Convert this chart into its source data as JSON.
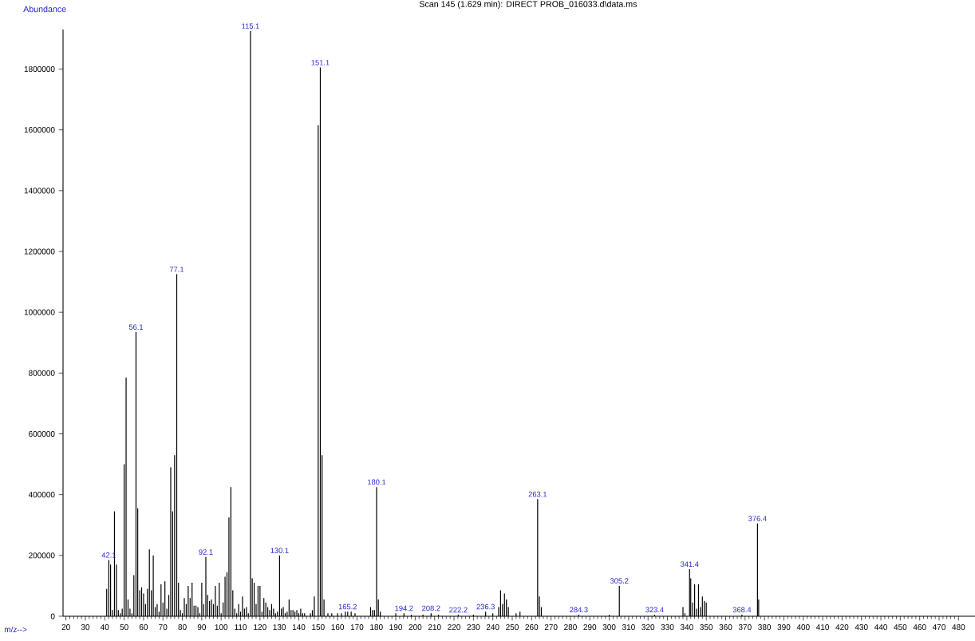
{
  "chart_data": {
    "type": "bar",
    "title": "Scan 145 (1.629 min): DIRECT PROB_016033.d\\data.ms",
    "xlabel": "m/z-->",
    "ylabel": "Abundance",
    "xlim": [
      18.5,
      488.5
    ],
    "ylim": [
      0,
      1930000
    ],
    "xticks": [
      20,
      30,
      40,
      50,
      60,
      70,
      80,
      90,
      100,
      110,
      120,
      130,
      140,
      150,
      160,
      170,
      180,
      190,
      200,
      210,
      220,
      230,
      240,
      250,
      260,
      270,
      280,
      290,
      300,
      310,
      320,
      330,
      340,
      350,
      360,
      370,
      380,
      390,
      400,
      410,
      420,
      430,
      440,
      450,
      460,
      470,
      480
    ],
    "yticks": [
      0,
      200000,
      400000,
      600000,
      800000,
      1000000,
      1200000,
      1400000,
      1600000,
      1800000
    ],
    "series": [
      {
        "color": "#000000",
        "x": [
          41,
          42.1,
          43,
          44,
          45,
          46,
          47,
          48,
          49,
          50,
          51,
          52,
          53,
          54,
          55,
          56.1,
          57,
          58,
          59,
          60,
          61,
          62,
          63,
          64,
          65,
          66,
          67,
          68,
          69,
          70,
          71,
          72,
          73,
          74,
          75,
          76,
          77.1,
          78,
          79,
          80,
          81,
          82,
          83,
          84,
          85,
          86,
          87,
          88,
          89,
          90,
          91,
          92.1,
          93,
          94,
          95,
          96,
          97,
          98,
          99,
          100,
          101,
          102,
          103,
          104,
          105,
          106,
          107,
          108,
          109,
          110,
          111,
          112,
          113,
          114,
          115.1,
          116,
          117,
          118,
          119,
          120,
          121,
          122,
          123,
          124,
          125,
          126,
          127,
          128,
          129,
          130.1,
          131,
          132,
          133,
          134,
          135,
          136,
          137,
          138,
          139,
          140,
          141,
          142,
          143,
          146,
          147,
          148,
          150,
          151.1,
          152,
          153,
          155,
          157,
          160,
          162,
          164,
          165.2,
          167,
          169,
          177,
          178,
          179,
          180.1,
          181,
          182,
          190,
          194.2,
          198,
          204,
          208.2,
          212,
          222.2,
          230,
          236.3,
          240,
          243,
          244,
          245,
          246,
          247,
          248,
          252,
          254,
          263.1,
          264,
          265,
          284.3,
          300,
          305.2,
          323.4,
          338,
          339,
          341.4,
          342,
          343,
          344,
          345,
          346,
          347,
          348,
          349,
          350,
          368.4,
          376.4,
          377
        ],
        "values": [
          90000,
          185000,
          170000,
          20000,
          345000,
          170000,
          20000,
          10000,
          25000,
          500000,
          785000,
          55000,
          25000,
          10000,
          135000,
          935000,
          355000,
          85000,
          95000,
          75000,
          40000,
          90000,
          220000,
          85000,
          200000,
          30000,
          40000,
          15000,
          105000,
          45000,
          115000,
          25000,
          70000,
          490000,
          345000,
          530000,
          1125000,
          110000,
          20000,
          10000,
          60000,
          40000,
          100000,
          60000,
          110000,
          35000,
          35000,
          30000,
          10000,
          110000,
          40000,
          195000,
          70000,
          50000,
          55000,
          40000,
          100000,
          35000,
          110000,
          10000,
          45000,
          130000,
          145000,
          325000,
          425000,
          85000,
          25000,
          10000,
          40000,
          15000,
          65000,
          25000,
          30000,
          10000,
          1925000,
          125000,
          110000,
          40000,
          100000,
          100000,
          15000,
          60000,
          45000,
          30000,
          20000,
          40000,
          25000,
          10000,
          15000,
          200000,
          25000,
          30000,
          10000,
          15000,
          55000,
          20000,
          20000,
          15000,
          20000,
          10000,
          25000,
          10000,
          10000,
          10000,
          20000,
          65000,
          1615000,
          1805000,
          530000,
          55000,
          10000,
          10000,
          10000,
          10000,
          15000,
          15000,
          15000,
          10000,
          30000,
          20000,
          20000,
          425000,
          55000,
          15000,
          10000,
          10000,
          5000,
          5000,
          10000,
          5000,
          5000,
          5000,
          15000,
          10000,
          30000,
          85000,
          40000,
          75000,
          55000,
          30000,
          10000,
          15000,
          385000,
          65000,
          30000,
          5000,
          5000,
          100000,
          5000,
          30000,
          10000,
          155000,
          125000,
          45000,
          105000,
          25000,
          105000,
          30000,
          65000,
          50000,
          45000,
          5000,
          305000,
          55000
        ]
      }
    ],
    "annotations": [
      {
        "text": "42.1",
        "x": 42.1,
        "y": 185000
      },
      {
        "text": "56.1",
        "x": 56.1,
        "y": 935000
      },
      {
        "text": "77.1",
        "x": 77.1,
        "y": 1125000
      },
      {
        "text": "92.1",
        "x": 92.1,
        "y": 195000
      },
      {
        "text": "115.1",
        "x": 115.1,
        "y": 1925000
      },
      {
        "text": "130.1",
        "x": 130.1,
        "y": 200000
      },
      {
        "text": "151.1",
        "x": 151.1,
        "y": 1805000
      },
      {
        "text": "165.2",
        "x": 165.2,
        "y": 15000
      },
      {
        "text": "180.1",
        "x": 180.1,
        "y": 425000
      },
      {
        "text": "194.2",
        "x": 194.2,
        "y": 10000
      },
      {
        "text": "208.2",
        "x": 208.2,
        "y": 10000
      },
      {
        "text": "222.2",
        "x": 222.2,
        "y": 5000
      },
      {
        "text": "236.3",
        "x": 236.3,
        "y": 15000
      },
      {
        "text": "263.1",
        "x": 263.1,
        "y": 385000
      },
      {
        "text": "284.3",
        "x": 284.3,
        "y": 5000
      },
      {
        "text": "305.2",
        "x": 305.2,
        "y": 100000
      },
      {
        "text": "323.4",
        "x": 323.4,
        "y": 5000
      },
      {
        "text": "341.4",
        "x": 341.4,
        "y": 155000
      },
      {
        "text": "368.4",
        "x": 368.4,
        "y": 5000
      },
      {
        "text": "376.4",
        "x": 376.4,
        "y": 305000
      }
    ]
  }
}
